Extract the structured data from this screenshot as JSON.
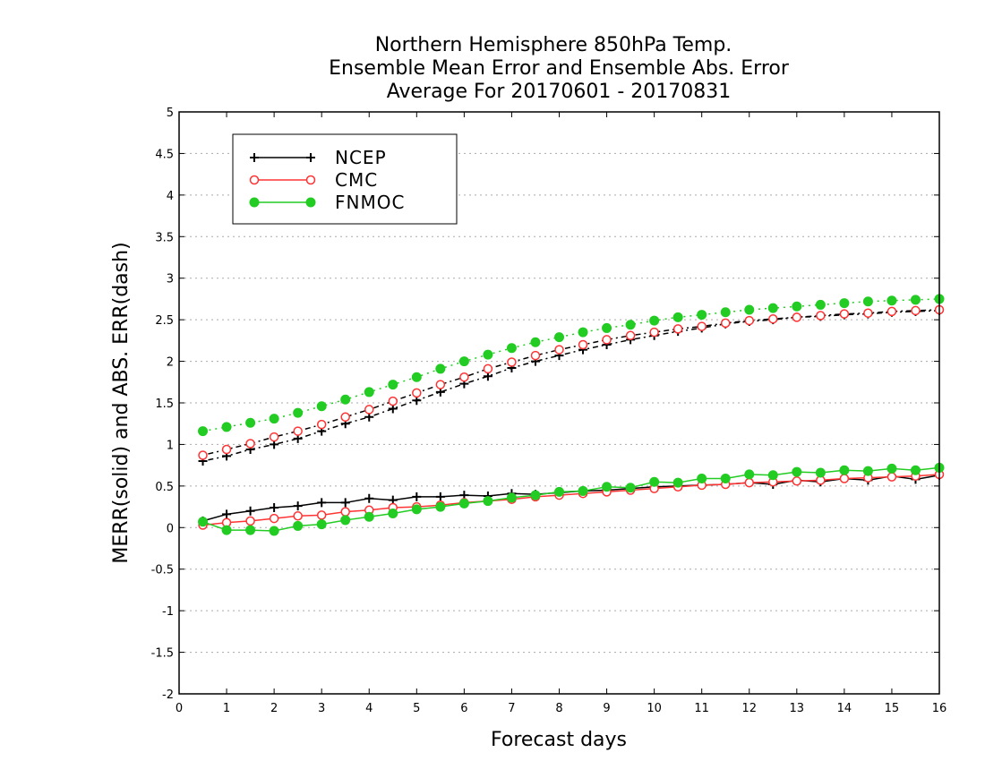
{
  "chart_data": {
    "type": "line",
    "title": [
      "Northern Hemisphere 850hPa Temp.",
      "Ensemble Mean Error and Ensemble Abs. Error",
      "Average For 20170601 - 20170831"
    ],
    "xlabel": "Forecast days",
    "ylabel": "MERR(solid) and ABS. ERR(dash)",
    "xlim": [
      0,
      16
    ],
    "ylim": [
      -2,
      5
    ],
    "x_ticks": [
      0,
      1,
      2,
      3,
      4,
      5,
      6,
      7,
      8,
      9,
      10,
      11,
      12,
      13,
      14,
      15,
      16
    ],
    "y_ticks": [
      -2,
      -1.5,
      -1,
      -0.5,
      0,
      0.5,
      1,
      1.5,
      2,
      2.5,
      3,
      3.5,
      4,
      4.5,
      5
    ],
    "y_tick_labels": [
      "-2",
      "-1.5",
      "-1",
      "-0.5",
      "0",
      "0.5",
      "1",
      "1.5",
      "2",
      "2.5",
      "3",
      "3.5",
      "4",
      "4.5",
      "5"
    ],
    "x_tick_labels": [
      "0",
      "1",
      "2",
      "3",
      "4",
      "5",
      "6",
      "7",
      "8",
      "9",
      "10",
      "11",
      "12",
      "13",
      "14",
      "15",
      "16"
    ],
    "grid": "horizontal dotted",
    "legend_position": "top-left",
    "x": [
      0.5,
      1,
      1.5,
      2,
      2.5,
      3,
      3.5,
      4,
      4.5,
      5,
      5.5,
      6,
      6.5,
      7,
      7.5,
      8,
      8.5,
      9,
      9.5,
      10,
      10.5,
      11,
      11.5,
      12,
      12.5,
      13,
      13.5,
      14,
      14.5,
      15,
      15.5,
      16
    ],
    "series": [
      {
        "name": "NCEP",
        "color": "#000000",
        "marker": "plus",
        "mean_error": [
          0.08,
          0.16,
          0.2,
          0.24,
          0.26,
          0.3,
          0.3,
          0.35,
          0.33,
          0.37,
          0.37,
          0.39,
          0.38,
          0.41,
          0.4,
          0.42,
          0.44,
          0.45,
          0.47,
          0.49,
          0.5,
          0.51,
          0.52,
          0.54,
          0.52,
          0.57,
          0.55,
          0.59,
          0.57,
          0.62,
          0.58,
          0.63
        ],
        "abs_error": [
          0.8,
          0.86,
          0.94,
          1.0,
          1.07,
          1.16,
          1.25,
          1.33,
          1.43,
          1.53,
          1.63,
          1.73,
          1.82,
          1.92,
          2.0,
          2.07,
          2.14,
          2.2,
          2.26,
          2.31,
          2.36,
          2.4,
          2.45,
          2.48,
          2.5,
          2.53,
          2.54,
          2.56,
          2.57,
          2.59,
          2.6,
          2.61
        ]
      },
      {
        "name": "CMC",
        "color": "#ff3333",
        "marker": "open-circle",
        "mean_error": [
          0.03,
          0.06,
          0.08,
          0.11,
          0.14,
          0.15,
          0.19,
          0.21,
          0.24,
          0.25,
          0.27,
          0.3,
          0.32,
          0.34,
          0.37,
          0.39,
          0.41,
          0.43,
          0.45,
          0.47,
          0.49,
          0.51,
          0.52,
          0.54,
          0.55,
          0.56,
          0.57,
          0.59,
          0.6,
          0.61,
          0.62,
          0.64
        ],
        "abs_error": [
          0.87,
          0.94,
          1.01,
          1.09,
          1.16,
          1.24,
          1.33,
          1.42,
          1.52,
          1.62,
          1.72,
          1.81,
          1.91,
          1.99,
          2.07,
          2.14,
          2.2,
          2.26,
          2.31,
          2.35,
          2.39,
          2.42,
          2.46,
          2.49,
          2.51,
          2.53,
          2.55,
          2.57,
          2.58,
          2.6,
          2.61,
          2.62
        ]
      },
      {
        "name": "FNMOC",
        "color": "#22cc22",
        "marker": "filled-circle",
        "mean_error": [
          0.07,
          -0.03,
          -0.03,
          -0.04,
          0.02,
          0.04,
          0.09,
          0.13,
          0.17,
          0.22,
          0.25,
          0.29,
          0.32,
          0.36,
          0.39,
          0.43,
          0.44,
          0.49,
          0.48,
          0.55,
          0.54,
          0.59,
          0.59,
          0.64,
          0.63,
          0.67,
          0.66,
          0.69,
          0.68,
          0.71,
          0.69,
          0.72
        ],
        "abs_error": [
          1.16,
          1.21,
          1.26,
          1.31,
          1.38,
          1.46,
          1.54,
          1.63,
          1.72,
          1.81,
          1.91,
          2.0,
          2.08,
          2.16,
          2.23,
          2.29,
          2.35,
          2.4,
          2.44,
          2.49,
          2.53,
          2.56,
          2.59,
          2.62,
          2.64,
          2.66,
          2.68,
          2.7,
          2.72,
          2.73,
          2.74,
          2.75
        ]
      }
    ]
  }
}
